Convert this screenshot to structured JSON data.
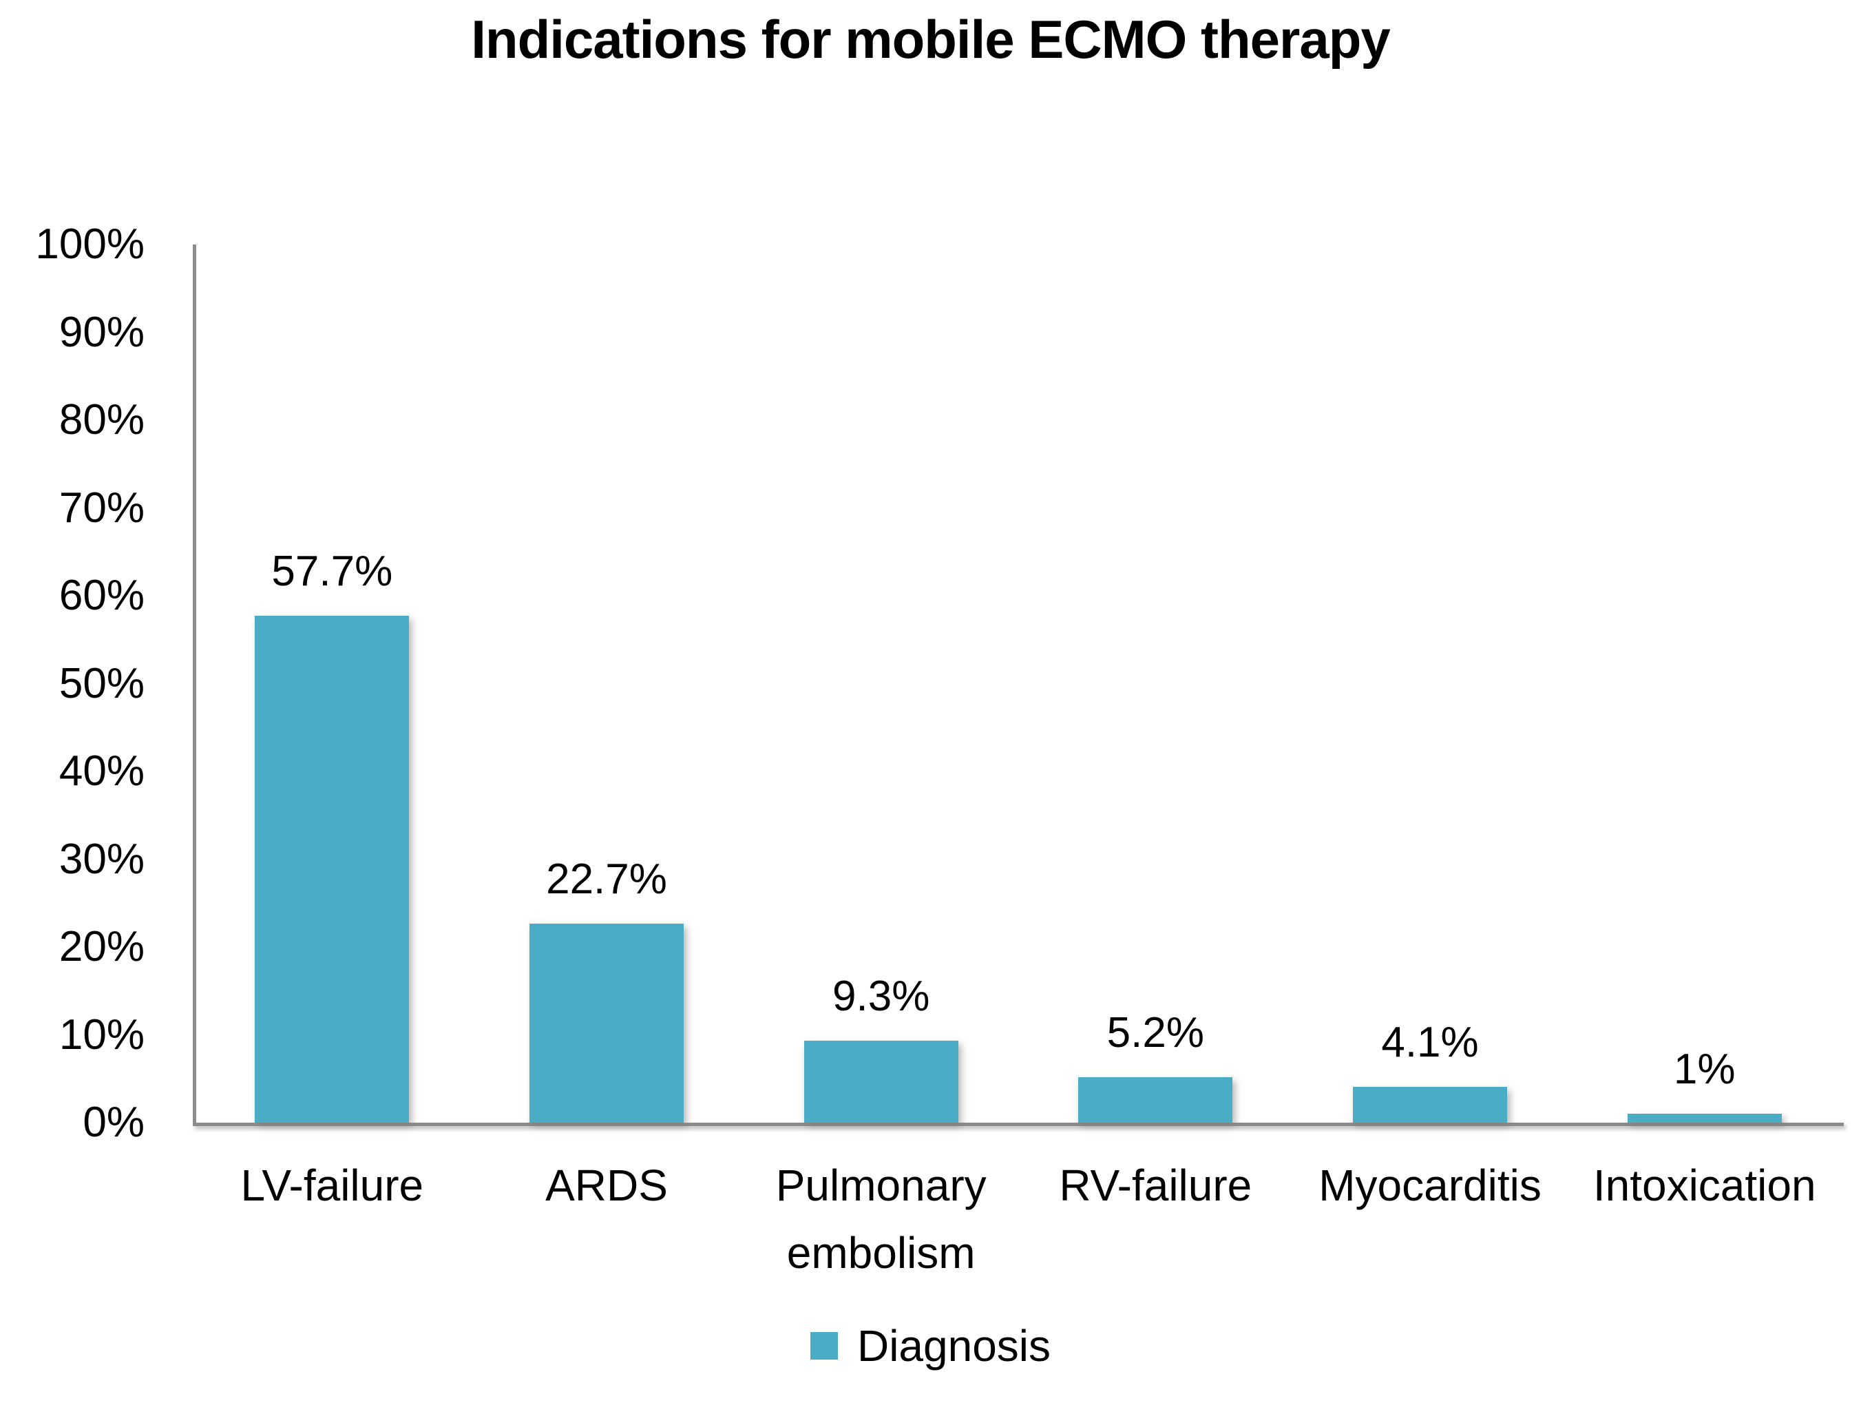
{
  "chart_data": {
    "type": "bar",
    "title": "Indications for mobile ECMO therapy",
    "categories": [
      "LV-failure",
      "ARDS",
      "Pulmonary embolism",
      "RV-failure",
      "Myocarditis",
      "Intoxication"
    ],
    "values": [
      57.7,
      22.7,
      9.3,
      5.2,
      4.1,
      1
    ],
    "value_labels": [
      "57.7%",
      "22.7%",
      "9.3%",
      "5.2%",
      "4.1%",
      "1%"
    ],
    "series_name": "Diagnosis",
    "xlabel": "",
    "ylabel": "",
    "ylim": [
      0,
      100
    ],
    "ytick_step": 10,
    "ytick_labels": [
      "0%",
      "10%",
      "20%",
      "30%",
      "40%",
      "50%",
      "60%",
      "70%",
      "80%",
      "90%",
      "100%"
    ],
    "grid": false,
    "legend_position": "bottom",
    "colors": {
      "bar": "#4bacc6",
      "axis": "#8c8c8c",
      "text": "#000000",
      "background": "#ffffff"
    }
  }
}
